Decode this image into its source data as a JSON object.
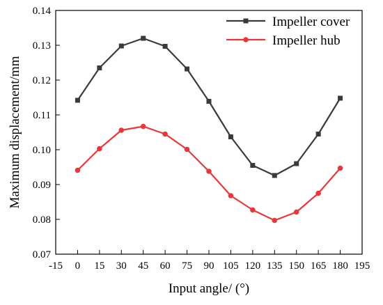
{
  "chart_data": {
    "type": "line",
    "xlabel": "Input angle/ (°)",
    "ylabel": "Maximum displacement/mm",
    "xlim": [
      -15,
      195
    ],
    "ylim": [
      0.07,
      0.14
    ],
    "xticks": [
      "-15",
      "0",
      "15",
      "30",
      "45",
      "60",
      "75",
      "90",
      "105",
      "120",
      "135",
      "150",
      "165",
      "180",
      "195"
    ],
    "yticks": [
      "0.07",
      "0.08",
      "0.09",
      "0.10",
      "0.11",
      "0.12",
      "0.13",
      "0.14"
    ],
    "x": [
      0,
      15,
      30,
      45,
      60,
      75,
      90,
      105,
      120,
      135,
      150,
      165,
      180
    ],
    "grid": false,
    "legend_position": "top-right",
    "series": [
      {
        "name": "Impeller cover",
        "color": "#3a3a3a",
        "marker": "square",
        "values": [
          0.1142,
          0.1235,
          0.1298,
          0.132,
          0.1297,
          0.1232,
          0.1139,
          0.1037,
          0.0955,
          0.0926,
          0.096,
          0.1045,
          0.1148
        ]
      },
      {
        "name": "Impeller hub",
        "color": "#e8373a",
        "marker": "circle",
        "values": [
          0.0941,
          0.1003,
          0.1056,
          0.1067,
          0.1045,
          0.1001,
          0.0938,
          0.0868,
          0.0827,
          0.0797,
          0.0821,
          0.0875,
          0.0947
        ]
      }
    ]
  }
}
